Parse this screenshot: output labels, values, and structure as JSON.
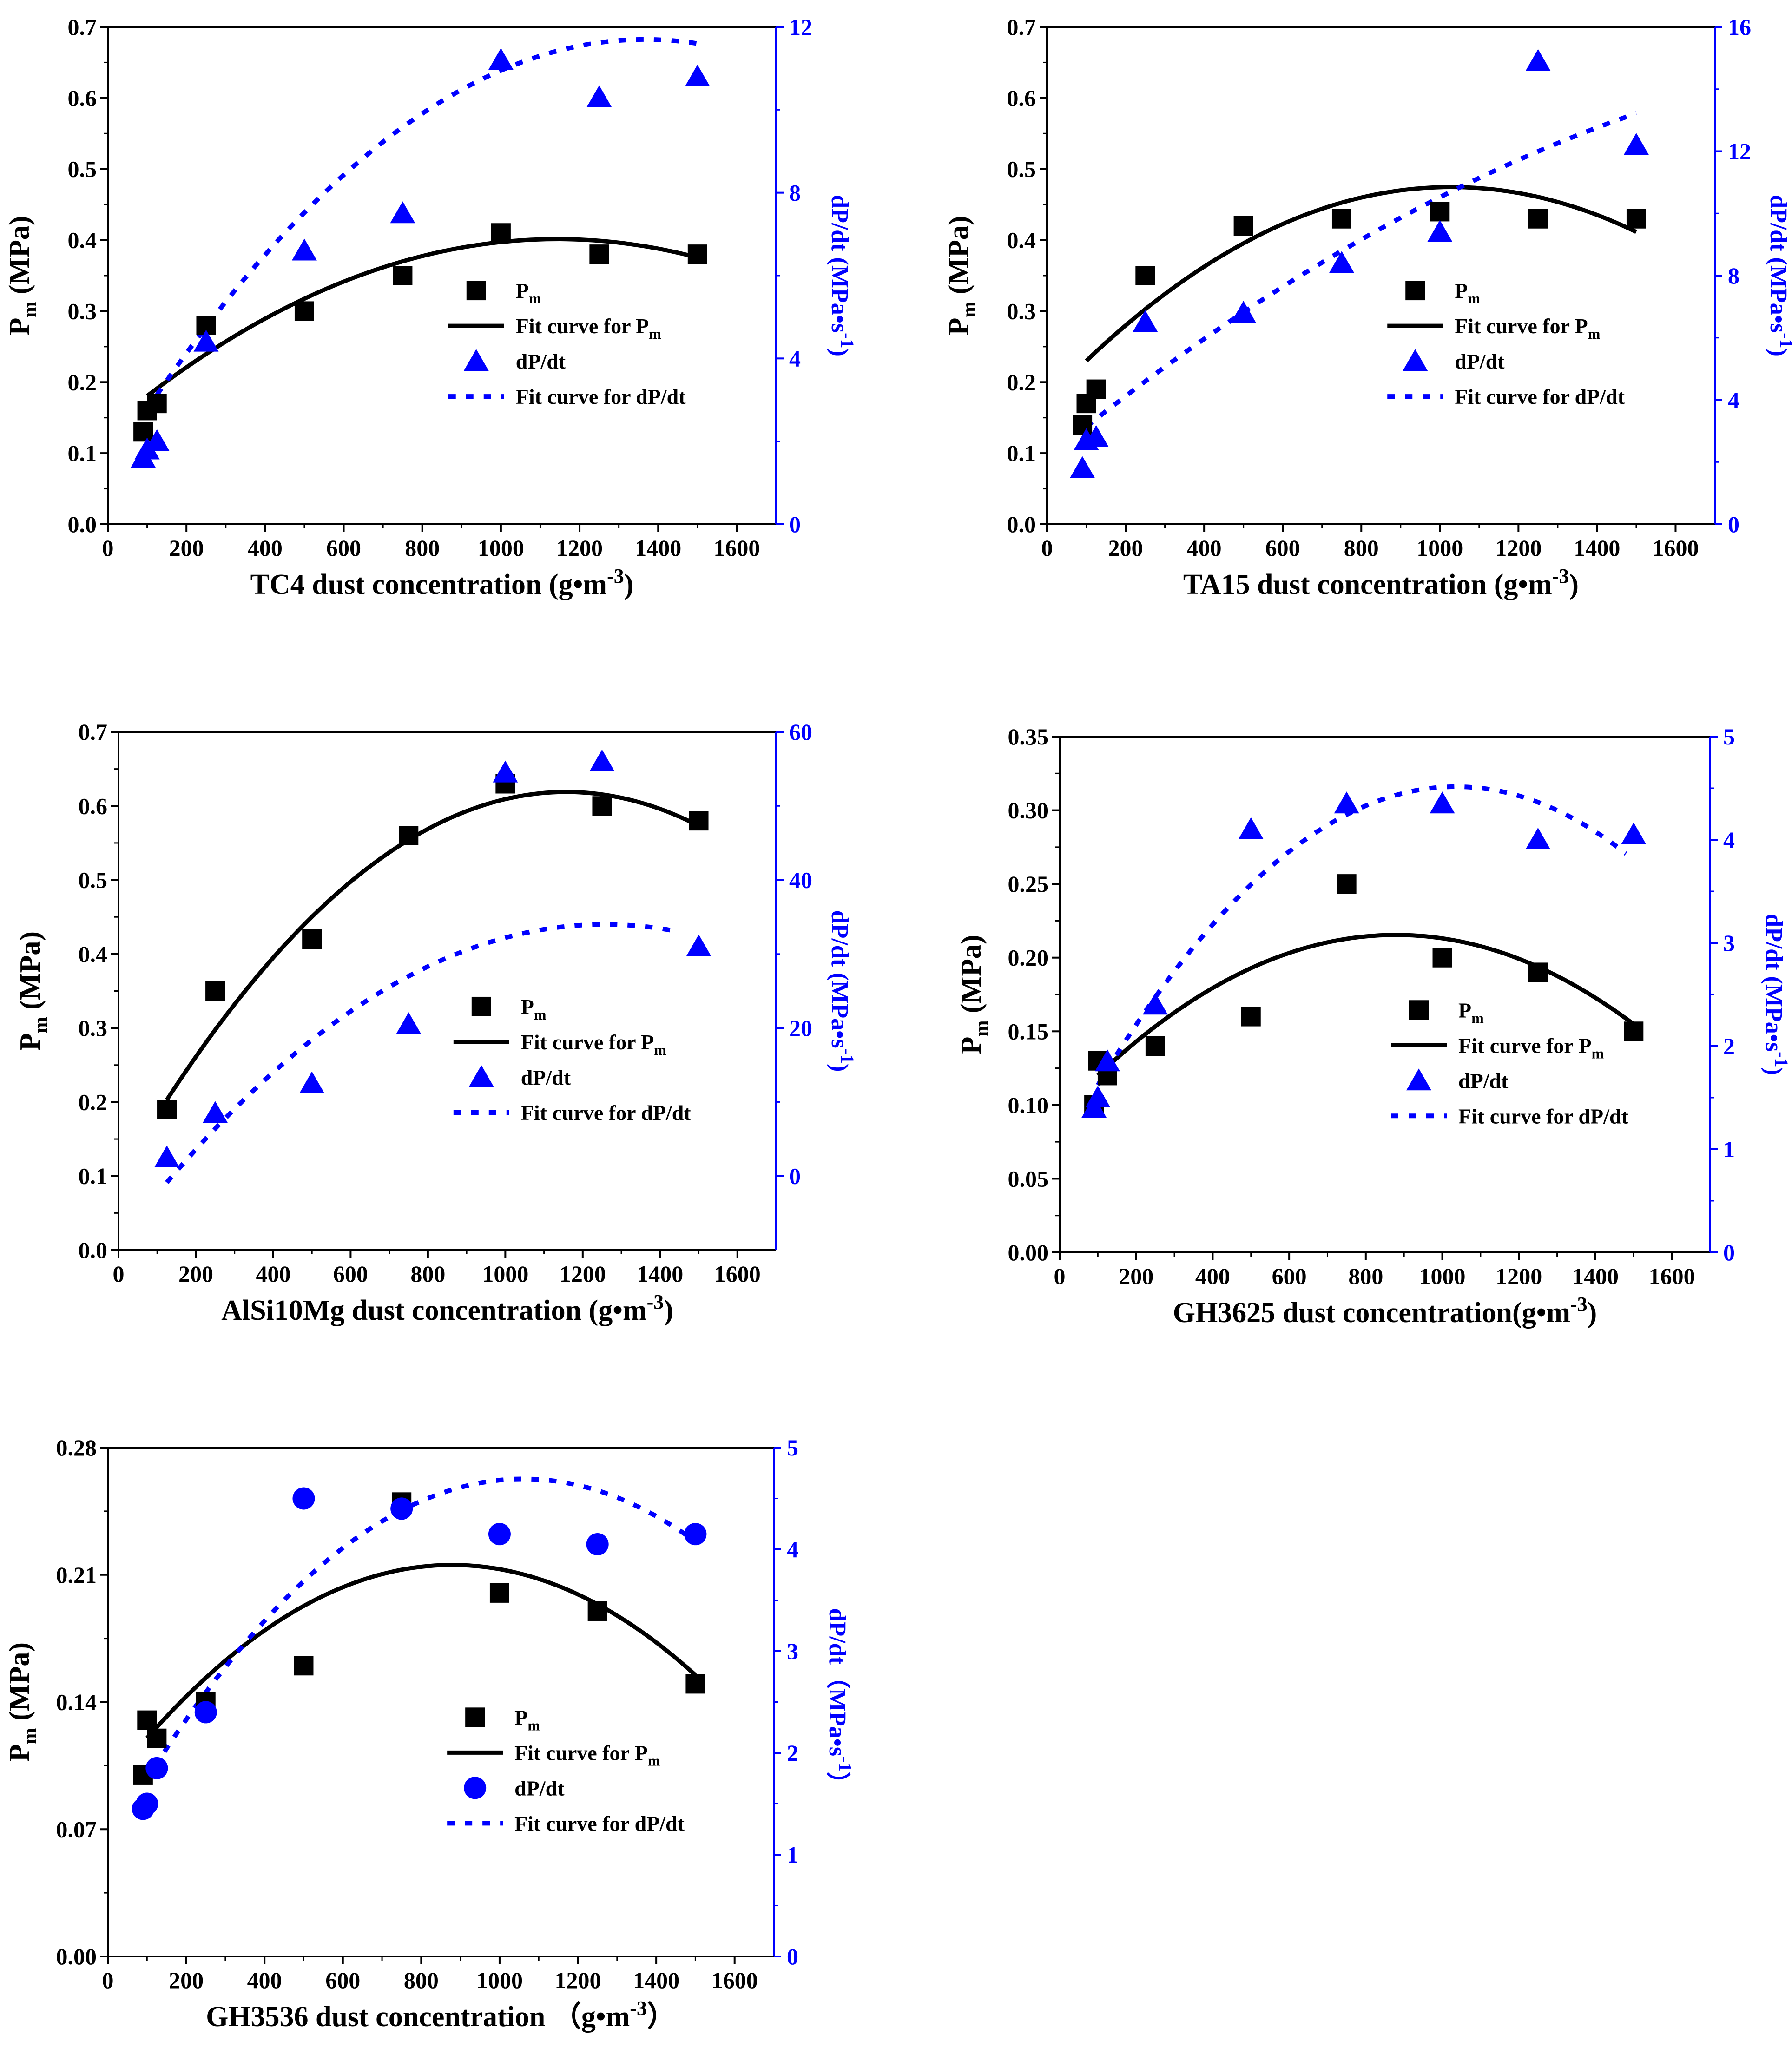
{
  "figure": {
    "description_free": true
  },
  "colors": {
    "pm": "#000000",
    "dpdt": "#0000ff",
    "axis_right": "#0000ff",
    "axis_left": "#000000"
  },
  "chart_data": [
    {
      "type": "scatter",
      "id": "tc4",
      "xlabel_main": "TC4 dust concentration (g",
      "xlabel_bullet": "•",
      "xlabel_unit": "m",
      "xlabel_sup": "-3",
      "xlabel_close": ")",
      "ylabel_main": "P",
      "ylabel_sub": "m",
      "ylabel_unit": " (MPa)",
      "y2label": "dP/dt (MPa",
      "y2label_bullet": "•",
      "y2label_unit": "s",
      "y2label_sup": "-1",
      "y2label_close": ")",
      "xlim": [
        0,
        1700
      ],
      "xticks": [
        0,
        200,
        400,
        600,
        800,
        1000,
        1200,
        1400,
        1600
      ],
      "ylim": [
        0,
        0.7
      ],
      "yticks": [
        0.0,
        0.1,
        0.2,
        0.3,
        0.4,
        0.5,
        0.6,
        0.7
      ],
      "ytick_labels": [
        "0.0",
        "0.1",
        "0.2",
        "0.3",
        "0.4",
        "0.5",
        "0.6",
        "0.7"
      ],
      "y2lim": [
        0,
        12
      ],
      "y2ticks": [
        0,
        4,
        8,
        12
      ],
      "y2tick_labels": [
        "0",
        "4",
        "8",
        "12"
      ],
      "dpdt_marker": "triangle",
      "series": [
        {
          "name": "Pm",
          "x": [
            90,
            100,
            125,
            250,
            500,
            750,
            1000,
            1250,
            1500
          ],
          "y": [
            0.13,
            0.16,
            0.17,
            0.28,
            0.3,
            0.35,
            0.41,
            0.38,
            0.38
          ]
        },
        {
          "name": "dP/dt",
          "x": [
            90,
            100,
            125,
            250,
            500,
            750,
            1000,
            1250,
            1500
          ],
          "y": [
            1.6,
            1.8,
            2.0,
            4.4,
            6.6,
            7.5,
            11.2,
            10.3,
            10.8
          ]
        }
      ],
      "fits": {
        "pm": {
          "x_range": [
            100,
            1500
          ],
          "coef": [
            0.1362,
            0.000464,
            -2.03e-07
          ]
        },
        "dpdt": {
          "x_range": [
            100,
            1500
          ],
          "coef": [
            1.31,
            0.0152,
            -5.56e-06
          ]
        }
      },
      "legend": {
        "placement": "center-right",
        "entries": [
          {
            "label": "P",
            "sub": "m",
            "extra": ""
          },
          {
            "label": "Fit curve for P",
            "sub": "m",
            "extra": ""
          },
          {
            "label": "dP/dt",
            "sub": "",
            "extra": ""
          },
          {
            "label": "Fit curve for dP/dt",
            "sub": "",
            "extra": ""
          }
        ]
      }
    },
    {
      "type": "scatter",
      "id": "ta15",
      "xlabel_main": "TA15 dust concentration (g",
      "xlabel_bullet": "•",
      "xlabel_unit": "m",
      "xlabel_sup": "-3",
      "xlabel_close": ")",
      "ylabel_main": "P",
      "ylabel_sub": "m",
      "ylabel_unit": " (MPa)",
      "y2label": "dP/dt (MPa",
      "y2label_bullet": "•",
      "y2label_unit": "s",
      "y2label_sup": "-1",
      "y2label_close": ")",
      "xlim": [
        0,
        1700
      ],
      "xticks": [
        0,
        200,
        400,
        600,
        800,
        1000,
        1200,
        1400,
        1600
      ],
      "ylim": [
        0,
        0.7
      ],
      "yticks": [
        0.0,
        0.1,
        0.2,
        0.3,
        0.4,
        0.5,
        0.6,
        0.7
      ],
      "ytick_labels": [
        "0.0",
        "0.1",
        "0.2",
        "0.3",
        "0.4",
        "0.5",
        "0.6",
        "0.7"
      ],
      "y2lim": [
        0,
        16
      ],
      "y2ticks": [
        0,
        4,
        8,
        12,
        16
      ],
      "y2tick_labels": [
        "0",
        "4",
        "8",
        "12",
        "16"
      ],
      "dpdt_marker": "triangle",
      "series": [
        {
          "name": "Pm",
          "x": [
            90,
            100,
            125,
            250,
            500,
            750,
            1000,
            1250,
            1500
          ],
          "y": [
            0.14,
            0.17,
            0.19,
            0.35,
            0.42,
            0.43,
            0.44,
            0.43,
            0.43
          ]
        },
        {
          "name": "dP/dt",
          "x": [
            90,
            100,
            125,
            250,
            500,
            750,
            1000,
            1250,
            1500
          ],
          "y": [
            1.8,
            2.7,
            2.8,
            6.5,
            6.8,
            8.4,
            9.4,
            14.9,
            12.2
          ]
        }
      ],
      "fits": {
        "pm": {
          "x_range": [
            100,
            1500
          ],
          "coef": [
            0.1744,
            0.000584,
            -2.84e-07
          ]
        },
        "dpdt": {
          "x_range": [
            100,
            1500
          ],
          "coef": [
            2.12,
            0.0104,
            -2e-06
          ]
        }
      },
      "legend": {
        "placement": "center-right",
        "entries": [
          {
            "label": "P",
            "sub": "m",
            "extra": ""
          },
          {
            "label": "Fit curve for P",
            "sub": "m",
            "extra": ""
          },
          {
            "label": "dP/dt",
            "sub": "",
            "extra": ""
          },
          {
            "label": "Fit curve for dP/dt",
            "sub": "",
            "extra": ""
          }
        ]
      }
    },
    {
      "type": "scatter",
      "id": "alsi10mg",
      "xlabel_main": "AlSi10Mg dust concentration (g",
      "xlabel_bullet": "•",
      "xlabel_unit": "m",
      "xlabel_sup": "-3",
      "xlabel_close": ")",
      "ylabel_main": "P",
      "ylabel_sub": "m",
      "ylabel_unit": " (MPa)",
      "y2label": "dP/dt (MPa",
      "y2label_bullet": "•",
      "y2label_unit": "s",
      "y2label_sup": "-1",
      "y2label_close": ")",
      "xlim": [
        0,
        1700
      ],
      "xticks": [
        0,
        200,
        400,
        600,
        800,
        1000,
        1200,
        1400,
        1600
      ],
      "ylim": [
        0,
        0.7
      ],
      "yticks": [
        0.0,
        0.1,
        0.2,
        0.3,
        0.4,
        0.5,
        0.6,
        0.7
      ],
      "ytick_labels": [
        "0.0",
        "0.1",
        "0.2",
        "0.3",
        "0.4",
        "0.5",
        "0.6",
        "0.7"
      ],
      "y2lim": [
        -10,
        60
      ],
      "y2ticks": [
        0,
        20,
        40,
        60
      ],
      "y2tick_labels": [
        "0",
        "20",
        "40",
        "60"
      ],
      "dpdt_marker": "triangle",
      "series": [
        {
          "name": "Pm",
          "x": [
            125,
            250,
            500,
            750,
            1000,
            1250,
            1500
          ],
          "y": [
            0.19,
            0.35,
            0.42,
            0.56,
            0.63,
            0.6,
            0.58
          ]
        },
        {
          "name": "dP/dt",
          "x": [
            125,
            250,
            500,
            750,
            1000,
            1250,
            1500
          ],
          "y": [
            2.5,
            8.5,
            12.5,
            20.5,
            54.5,
            56.0,
            31.0
          ]
        }
      ],
      "fits": {
        "pm": {
          "x_range": [
            125,
            1500
          ],
          "coef": [
            0.0962,
            0.000903,
            -3.9e-07
          ]
        },
        "dpdt": {
          "x_range": [
            125,
            1450
          ],
          "coef": [
            -9.0,
            0.0684,
            -2.72e-05
          ]
        }
      },
      "legend": {
        "placement": "center-right",
        "entries": [
          {
            "label": "P",
            "sub": "m",
            "extra": ""
          },
          {
            "label": "Fit curve for P",
            "sub": "m",
            "extra": ""
          },
          {
            "label": "dP/dt",
            "sub": "",
            "extra": ""
          },
          {
            "label": "Fit curve for dP/dt",
            "sub": "",
            "extra": ""
          }
        ]
      }
    },
    {
      "type": "scatter",
      "id": "gh3625",
      "xlabel_main": "GH3625 dust concentration(g",
      "xlabel_bullet": "•",
      "xlabel_unit": "m",
      "xlabel_sup": "-3",
      "xlabel_close": ")",
      "ylabel_main": "P",
      "ylabel_sub": "m",
      "ylabel_unit": " (MPa)",
      "y2label": "dP/dt (MPa",
      "y2label_bullet": "•",
      "y2label_unit": "s",
      "y2label_sup": "-1",
      "y2label_close": ")",
      "xlim": [
        0,
        1700
      ],
      "xticks": [
        0,
        200,
        400,
        600,
        800,
        1000,
        1200,
        1400,
        1600
      ],
      "ylim": [
        0,
        0.35
      ],
      "yticks": [
        0.0,
        0.05,
        0.1,
        0.15,
        0.2,
        0.25,
        0.3,
        0.35
      ],
      "ytick_labels": [
        "0.00",
        "0.05",
        "0.10",
        "0.15",
        "0.20",
        "0.25",
        "0.30",
        "0.35"
      ],
      "y2lim": [
        0,
        5
      ],
      "y2ticks": [
        0,
        1,
        2,
        3,
        4,
        5
      ],
      "y2tick_labels": [
        "0",
        "1",
        "2",
        "3",
        "4",
        "5"
      ],
      "dpdt_marker": "triangle",
      "series": [
        {
          "name": "Pm",
          "x": [
            90,
            100,
            125,
            250,
            500,
            750,
            1000,
            1250,
            1500
          ],
          "y": [
            0.1,
            0.13,
            0.12,
            0.14,
            0.16,
            0.25,
            0.2,
            0.19,
            0.15
          ]
        },
        {
          "name": "dP/dt",
          "x": [
            90,
            100,
            125,
            250,
            500,
            750,
            1000,
            1250,
            1500
          ],
          "y": [
            1.4,
            1.5,
            1.85,
            2.4,
            4.1,
            4.35,
            4.35,
            4.0,
            4.05
          ]
        }
      ],
      "fits": {
        "pm": {
          "x_range": [
            100,
            1500
          ],
          "coef": [
            0.0941,
            0.000276,
            -1.57e-07
          ]
        },
        "dpdt": {
          "x_range": [
            100,
            1480
          ],
          "coef": [
            0.97,
            0.00684,
            -3.3e-06
          ]
        }
      },
      "legend": {
        "placement": "center-right",
        "entries": [
          {
            "label": "P",
            "sub": "m",
            "extra": ""
          },
          {
            "label": "Fit curve for P",
            "sub": "m",
            "extra": ""
          },
          {
            "label": "dP/dt",
            "sub": "",
            "extra": ""
          },
          {
            "label": "Fit curve for dP/dt",
            "sub": "",
            "extra": ""
          }
        ]
      }
    },
    {
      "type": "scatter",
      "id": "gh3536",
      "xlabel_main": "GH3536 dust concentration （g",
      "xlabel_bullet": "•",
      "xlabel_unit": "m",
      "xlabel_sup": "-3",
      "xlabel_close": "）",
      "ylabel_main": "P",
      "ylabel_sub": "m",
      "ylabel_unit": " (MPa)",
      "y2label": "dP/dt（MPa",
      "y2label_bullet": "•",
      "y2label_unit": "s",
      "y2label_sup": "-1",
      "y2label_close": "）",
      "xlim": [
        0,
        1700
      ],
      "xticks": [
        0,
        200,
        400,
        600,
        800,
        1000,
        1200,
        1400,
        1600
      ],
      "ylim": [
        0,
        0.28
      ],
      "yticks": [
        0.0,
        0.07,
        0.14,
        0.21,
        0.28
      ],
      "ytick_labels": [
        "0.00",
        "0.07",
        "0.14",
        "0.21",
        "0.28"
      ],
      "y2lim": [
        0,
        5
      ],
      "y2ticks": [
        0,
        1,
        2,
        3,
        4,
        5
      ],
      "y2tick_labels": [
        "0",
        "1",
        "2",
        "3",
        "4",
        "5"
      ],
      "dpdt_marker": "circle",
      "series": [
        {
          "name": "Pm",
          "x": [
            90,
            100,
            125,
            250,
            500,
            750,
            1000,
            1250,
            1500
          ],
          "y": [
            0.1,
            0.13,
            0.12,
            0.14,
            0.16,
            0.25,
            0.2,
            0.19,
            0.15
          ]
        },
        {
          "name": "dP/dt",
          "x": [
            90,
            100,
            125,
            250,
            500,
            750,
            1000,
            1250,
            1500
          ],
          "y": [
            1.45,
            1.5,
            1.85,
            2.4,
            4.5,
            4.4,
            4.15,
            4.05,
            4.15
          ]
        }
      ],
      "fits": {
        "pm": {
          "x_range": [
            100,
            1500
          ],
          "coef": [
            0.0941,
            0.000276,
            -1.57e-07
          ]
        },
        "dpdt": {
          "x_range": [
            120,
            1480
          ],
          "coef": [
            1.1,
            0.00677,
            -3.19e-06
          ]
        }
      },
      "legend": {
        "placement": "center-right",
        "entries": [
          {
            "label": "P",
            "sub": "m",
            "extra": ""
          },
          {
            "label": "Fit curve for P",
            "sub": "m",
            "extra": ""
          },
          {
            "label": "dP/dt",
            "sub": "",
            "extra": ""
          },
          {
            "label": "Fit curve for dP/dt",
            "sub": "",
            "extra": ""
          }
        ]
      }
    }
  ]
}
